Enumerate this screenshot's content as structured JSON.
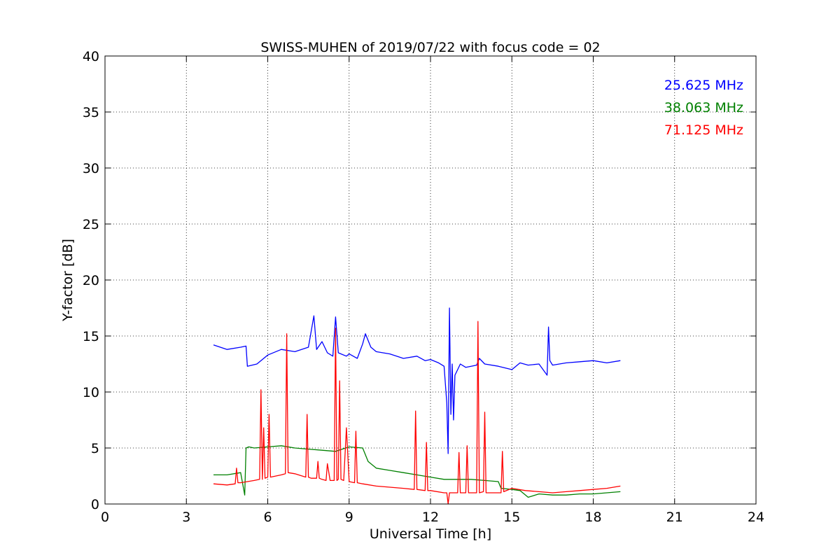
{
  "chart_data": {
    "type": "line",
    "title": "SWISS-MUHEN of 2019/07/22 with focus code = 02",
    "xlabel": "Universal Time [h]",
    "ylabel": "Y-factor [dB]",
    "xlim": [
      0,
      24
    ],
    "ylim": [
      0,
      40
    ],
    "xticks": [
      "0",
      "3",
      "6",
      "9",
      "12",
      "15",
      "18",
      "21",
      "24"
    ],
    "yticks": [
      "0",
      "5",
      "10",
      "15",
      "20",
      "25",
      "30",
      "35",
      "40"
    ],
    "grid": true,
    "legend_position": "top-right",
    "series": [
      {
        "name": "25.625 MHz",
        "color": "#0000ff",
        "x": [
          4.0,
          4.5,
          5.0,
          5.2,
          5.25,
          5.6,
          6.0,
          6.5,
          7.0,
          7.5,
          7.7,
          7.8,
          8.0,
          8.2,
          8.4,
          8.5,
          8.6,
          8.9,
          9.0,
          9.3,
          9.5,
          9.6,
          9.8,
          10.0,
          10.5,
          11.0,
          11.5,
          11.8,
          12.0,
          12.3,
          12.5,
          12.6,
          12.65,
          12.7,
          12.75,
          12.8,
          12.85,
          12.9,
          13.0,
          13.1,
          13.3,
          13.5,
          13.7,
          13.8,
          14.0,
          14.5,
          15.0,
          15.3,
          15.6,
          16.0,
          16.3,
          16.35,
          16.4,
          16.5,
          17.0,
          17.5,
          18.0,
          18.5,
          19.0
        ],
        "y": [
          14.2,
          13.8,
          14.0,
          14.1,
          12.3,
          12.5,
          13.3,
          13.8,
          13.6,
          14.0,
          16.8,
          13.8,
          14.5,
          13.5,
          13.2,
          16.7,
          13.5,
          13.2,
          13.4,
          13.0,
          14.3,
          15.2,
          14.0,
          13.6,
          13.4,
          13.0,
          13.2,
          12.8,
          12.9,
          12.6,
          12.3,
          9.0,
          4.5,
          17.5,
          8.0,
          12.5,
          7.5,
          11.5,
          12.0,
          12.5,
          12.2,
          12.3,
          12.4,
          13.0,
          12.5,
          12.3,
          12.0,
          12.6,
          12.4,
          12.5,
          11.5,
          15.8,
          12.8,
          12.4,
          12.6,
          12.7,
          12.8,
          12.6,
          12.8
        ]
      },
      {
        "name": "38.063 MHz",
        "color": "#008000",
        "x": [
          4.0,
          4.5,
          5.0,
          5.15,
          5.2,
          5.3,
          5.5,
          6.0,
          6.5,
          7.0,
          7.5,
          8.0,
          8.5,
          9.0,
          9.5,
          9.7,
          10.0,
          10.5,
          11.0,
          11.5,
          12.0,
          12.5,
          13.0,
          13.5,
          14.0,
          14.5,
          14.6,
          15.0,
          15.3,
          15.6,
          16.0,
          16.5,
          17.0,
          17.5,
          18.0,
          18.5,
          19.0
        ],
        "y": [
          2.6,
          2.6,
          2.8,
          0.8,
          5.0,
          5.1,
          5.0,
          5.1,
          5.2,
          5.0,
          4.9,
          4.8,
          4.7,
          5.1,
          5.0,
          3.8,
          3.2,
          3.0,
          2.8,
          2.6,
          2.4,
          2.2,
          2.2,
          2.2,
          2.1,
          2.0,
          1.4,
          1.3,
          1.2,
          0.6,
          0.9,
          0.8,
          0.8,
          0.9,
          0.9,
          1.0,
          1.1
        ]
      },
      {
        "name": "71.125 MHz",
        "color": "#ff0000",
        "x": [
          4.0,
          4.5,
          4.8,
          4.85,
          4.9,
          5.0,
          5.5,
          5.7,
          5.75,
          5.8,
          5.85,
          5.9,
          6.0,
          6.05,
          6.1,
          6.5,
          6.65,
          6.7,
          6.75,
          7.0,
          7.4,
          7.45,
          7.5,
          7.6,
          7.8,
          7.85,
          7.9,
          8.0,
          8.15,
          8.2,
          8.3,
          8.45,
          8.5,
          8.55,
          8.6,
          8.65,
          8.7,
          8.8,
          8.9,
          9.0,
          9.2,
          9.25,
          9.3,
          9.5,
          10.0,
          10.5,
          11.0,
          11.4,
          11.45,
          11.5,
          11.8,
          11.85,
          11.9,
          12.0,
          12.5,
          12.6,
          12.65,
          12.7,
          12.8,
          13.0,
          13.05,
          13.1,
          13.3,
          13.35,
          13.4,
          13.6,
          13.7,
          13.75,
          13.8,
          13.95,
          14.0,
          14.05,
          14.5,
          14.6,
          14.65,
          14.7,
          15.0,
          15.5,
          16.0,
          16.5,
          17.0,
          17.5,
          18.0,
          18.5,
          19.0
        ],
        "y": [
          1.8,
          1.7,
          1.8,
          3.2,
          1.9,
          1.9,
          2.1,
          2.2,
          10.2,
          2.2,
          6.8,
          2.3,
          2.4,
          8.0,
          2.4,
          2.6,
          2.7,
          15.2,
          2.8,
          2.7,
          2.4,
          8.0,
          2.4,
          2.3,
          2.3,
          3.8,
          2.3,
          2.2,
          2.1,
          3.6,
          2.1,
          2.1,
          15.7,
          2.1,
          2.2,
          11.0,
          2.2,
          2.1,
          6.8,
          2.0,
          1.9,
          6.5,
          1.9,
          1.8,
          1.6,
          1.5,
          1.4,
          1.3,
          8.3,
          1.3,
          1.2,
          5.5,
          1.2,
          1.2,
          1.0,
          1.0,
          0.0,
          1.0,
          1.0,
          1.0,
          4.6,
          1.0,
          1.0,
          5.2,
          1.0,
          1.0,
          1.0,
          16.3,
          1.0,
          1.1,
          8.2,
          1.0,
          1.0,
          1.0,
          4.7,
          1.1,
          1.4,
          1.2,
          1.1,
          1.0,
          1.1,
          1.2,
          1.3,
          1.4,
          1.6
        ]
      }
    ]
  }
}
